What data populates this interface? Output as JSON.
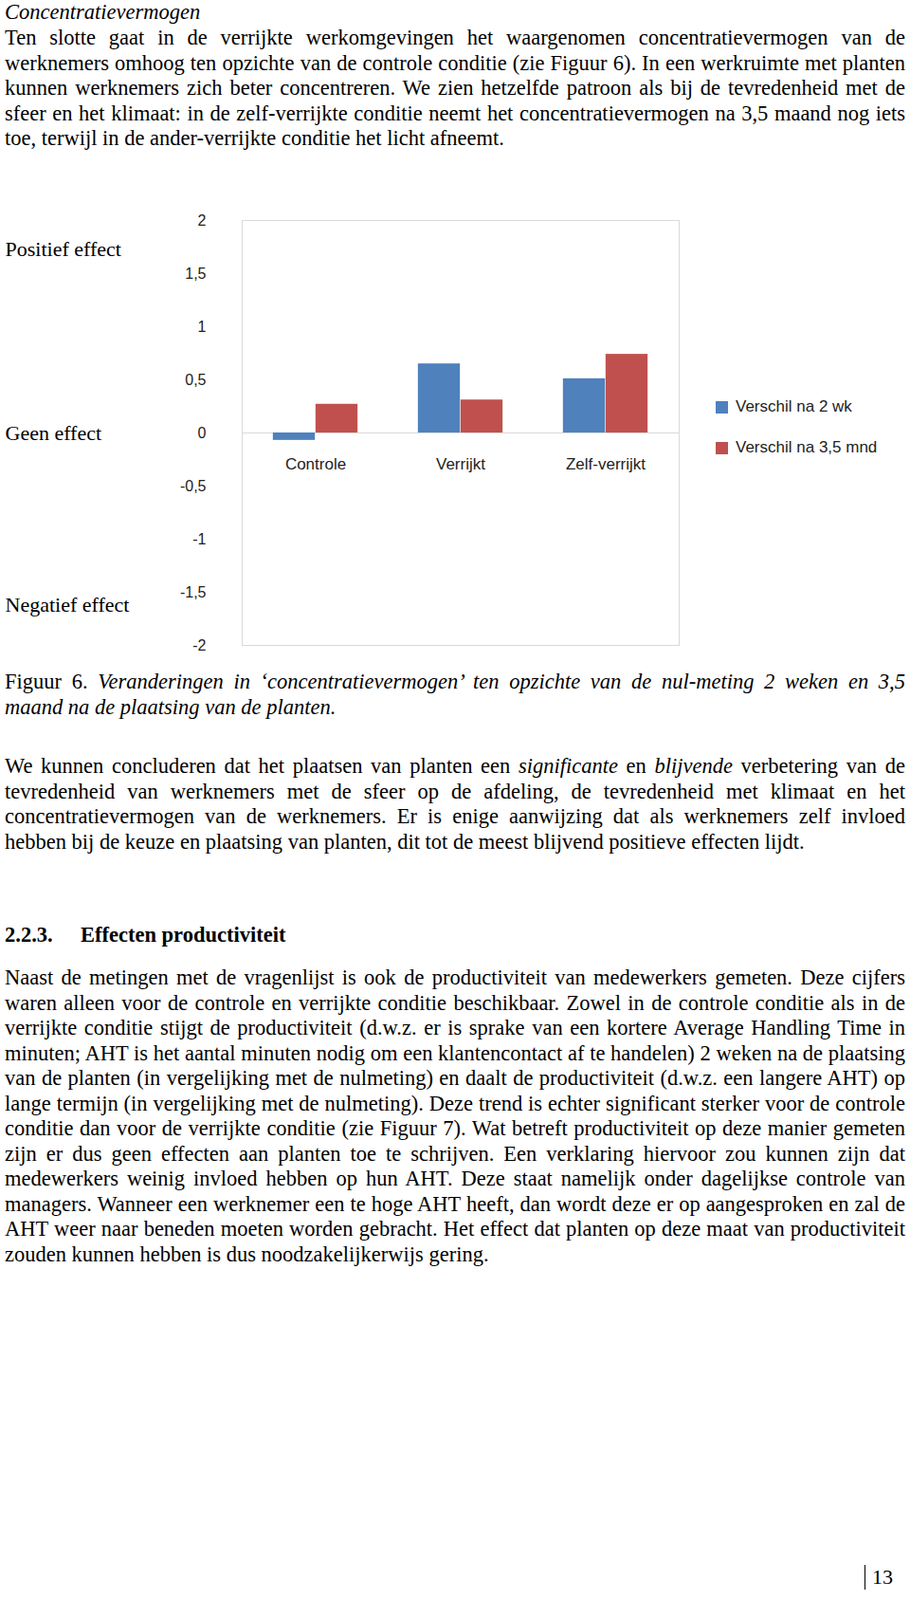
{
  "title": "Concentratievermogen",
  "paragraph_1": [
    {
      "text": "Ten slotte gaat in de verrijkte werkomgevingen het waargenomen concentratievermogen van de werknemers omhoog ten opzichte van de controle conditie (zie Figuur 6). In een werkruimte met planten kunnen werknemers zich beter concentreren. We zien hetzelfde patroon als bij de tevredenheid met de sfeer en het klimaat: in de zelf-verrijkte conditie neemt het concentratievermogen na 3,5 maand nog iets toe, terwijl in de ander-verrijkte conditie het licht afneemt.",
      "italic": false
    }
  ],
  "chart_data": {
    "type": "bar",
    "categories": [
      "Controle",
      "Verrijkt",
      "Zelf-verrijkt"
    ],
    "series": [
      {
        "name": "Verschil na 2 wk",
        "color": "#4f81bd",
        "values": [
          -0.07,
          0.65,
          0.51
        ]
      },
      {
        "name": "Verschil na 3,5 mnd",
        "color": "#c0504d",
        "values": [
          0.27,
          0.31,
          0.74
        ]
      }
    ],
    "ylim": [
      -2,
      2
    ],
    "yticks": [
      -2,
      {
        "value": -1.5,
        "label": "-1,5"
      },
      -1,
      {
        "value": -0.5,
        "label": "-0,5"
      },
      0,
      {
        "value": 0.5,
        "label": "0,5"
      },
      1,
      {
        "value": 1.5,
        "label": "1,5"
      },
      2
    ],
    "annotations": [
      "Positief effect",
      "Geen effect",
      "Negatief effect"
    ],
    "legend": "right",
    "grid": false
  },
  "caption": [
    {
      "text": "Figuur 6. ",
      "italic": false
    },
    {
      "text": "Veranderingen in ‘concentratievermogen’ ten opzichte van de nul-meting 2 weken en 3,5 maand na de plaatsing van de planten.",
      "italic": true
    }
  ],
  "paragraph_2": [
    {
      "text": "We kunnen concluderen dat het plaatsen van planten een ",
      "italic": false
    },
    {
      "text": "significante",
      "italic": true
    },
    {
      "text": " en ",
      "italic": false
    },
    {
      "text": "blijvende",
      "italic": true
    },
    {
      "text": " verbetering van de tevredenheid van werknemers met de sfeer op de afdeling, de tevredenheid met klimaat en het concentratievermogen van de werknemers. Er is enige aanwijzing dat als werknemers zelf invloed hebben bij de keuze en plaatsing van planten, dit tot de meest blijvend positieve effecten lijdt.",
      "italic": false
    }
  ],
  "heading": {
    "number": "2.2.3.",
    "text": "Effecten productiviteit"
  },
  "paragraph_3": [
    {
      "text": "Naast de metingen met de vragenlijst is ook de productiviteit van medewerkers gemeten. Deze cijfers waren alleen voor de controle en verrijkte conditie beschikbaar. Zowel in de controle conditie als in de verrijkte conditie stijgt de productiviteit (d.w.z. er is sprake van een kortere Average Handling Time in minuten; AHT is het aantal minuten nodig om een klantencontact af te handelen) 2 weken na de plaatsing van de planten (in vergelijking met de nulmeting) en daalt de productiviteit (d.w.z. een langere AHT) op lange termijn (in vergelijking met de nulmeting). Deze trend is echter significant sterker voor de controle conditie dan voor de verrijkte conditie (zie Figuur 7). Wat betreft productiviteit op deze manier gemeten zijn er dus geen effecten aan planten toe te schrijven. Een verklaring hiervoor zou kunnen zijn dat medewerkers weinig invloed hebben op hun AHT. Deze staat namelijk onder dagelijkse controle van managers. Wanneer een werknemer een te hoge AHT heeft, dan wordt deze er op aangesproken en zal de AHT weer naar beneden moeten worden gebracht. Het effect dat planten op deze maat van productiviteit zouden kunnen hebben is dus noodzakelijkerwijs gering.",
      "italic": false
    }
  ],
  "page_number": "13"
}
